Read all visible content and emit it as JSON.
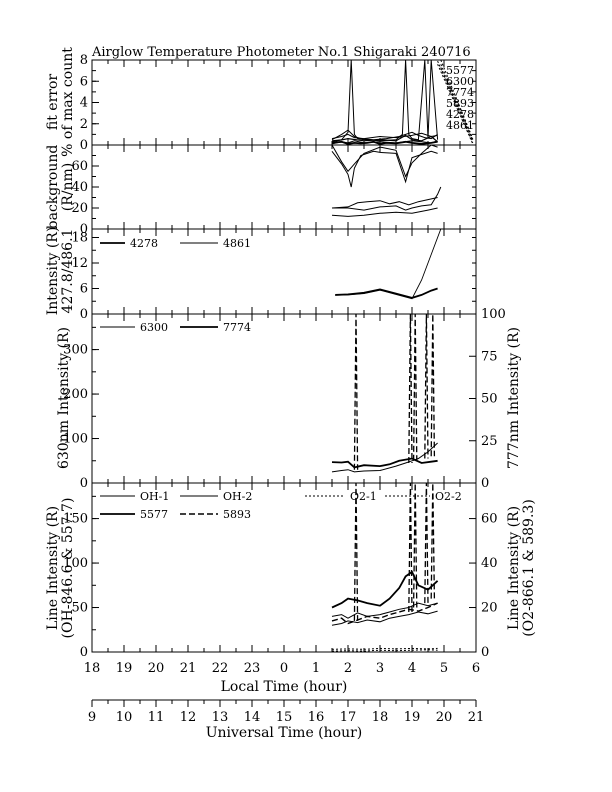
{
  "chart_data": {
    "type": "line",
    "title": "Airglow Temperature Photometer No.1  Shigaraki  240716",
    "x_axis_local": {
      "label": "Local Time (hour)",
      "range": [
        18,
        30
      ],
      "tick_values": [
        18,
        19,
        20,
        21,
        22,
        23,
        24,
        25,
        26,
        27,
        28,
        29,
        30
      ],
      "tick_labels": [
        "18",
        "19",
        "20",
        "21",
        "22",
        "23",
        "0",
        "1",
        "2",
        "3",
        "4",
        "5",
        "6"
      ]
    },
    "x_axis_universal": {
      "label": "Universal Time (hour)",
      "range": [
        9,
        21
      ],
      "tick_values": [
        9,
        10,
        11,
        12,
        13,
        14,
        15,
        16,
        17,
        18,
        19,
        20,
        21
      ],
      "tick_labels": [
        "9",
        "10",
        "11",
        "12",
        "13",
        "14",
        "15",
        "16",
        "17",
        "18",
        "19",
        "20",
        "21"
      ]
    },
    "panels": [
      {
        "id": "fit-error",
        "ylabel": [
          "fit error",
          "% of max count"
        ],
        "ylim": [
          0,
          8
        ],
        "yticks": [
          0,
          2,
          4,
          6,
          8
        ],
        "legend": [
          "5577",
          "6300",
          "7774",
          "5893",
          "4278",
          "4861"
        ],
        "series": [
          {
            "name": "5577",
            "dash": "",
            "width": 1.2,
            "x": [
              25.5,
              26.0,
              26.5,
              27.0,
              27.5,
              27.8,
              28.0,
              28.3,
              28.6,
              28.8
            ],
            "y": [
              0.3,
              0.6,
              0.4,
              0.5,
              0.4,
              0.9,
              0.5,
              0.4,
              0.8,
              0.3
            ]
          },
          {
            "name": "6300",
            "dash": "",
            "width": 1.0,
            "x": [
              25.5,
              25.8,
              26.0,
              26.2,
              26.4,
              26.8,
              27.2,
              27.6,
              28.0,
              28.2,
              28.4,
              28.6,
              28.8
            ],
            "y": [
              0.5,
              1.0,
              1.4,
              0.8,
              0.6,
              0.5,
              0.6,
              0.8,
              1.2,
              0.9,
              0.7,
              0.6,
              1.0
            ]
          },
          {
            "name": "7774",
            "dash": "",
            "width": 1.8,
            "x": [
              25.5,
              25.8,
              26.0,
              26.2,
              26.4,
              26.6,
              26.8,
              27.0,
              27.2,
              27.5,
              27.8,
              28.0,
              28.3,
              28.6,
              28.8
            ],
            "y": [
              0.2,
              0.3,
              0.1,
              0.2,
              0.15,
              0.2,
              0.3,
              0.1,
              0.2,
              0.15,
              0.3,
              0.2,
              0.1,
              0.2,
              0.3
            ]
          },
          {
            "name": "5893",
            "dash": "",
            "width": 1.0,
            "x": [
              25.5,
              25.8,
              26.0,
              26.1,
              26.2,
              26.3,
              26.5,
              27.0,
              27.5,
              27.7,
              27.8,
              27.9,
              28.0,
              28.2,
              28.4,
              28.5,
              28.6,
              28.8
            ],
            "y": [
              0.4,
              0.5,
              1.2,
              8.0,
              1.0,
              0.6,
              0.5,
              0.4,
              0.5,
              1.0,
              8.0,
              1.0,
              0.6,
              0.5,
              8.0,
              0.6,
              8.0,
              0.5
            ]
          },
          {
            "name": "4278",
            "dash": "",
            "width": 1.0,
            "x": [
              25.5,
              25.8,
              26.0,
              26.2,
              26.5,
              27.0,
              27.5,
              28.0,
              28.3,
              28.6,
              28.8
            ],
            "y": [
              0.1,
              0.3,
              0.2,
              0.4,
              0.2,
              0.3,
              0.2,
              0.4,
              0.3,
              0.2,
              0.4
            ]
          },
          {
            "name": "4861",
            "dash": "",
            "width": 1.0,
            "x": [
              25.5,
              25.8,
              26.0,
              26.2,
              26.5,
              27.0,
              27.5,
              28.0,
              28.3,
              28.6,
              28.8
            ],
            "y": [
              0.6,
              0.8,
              1.0,
              0.7,
              0.6,
              0.8,
              0.7,
              0.9,
              1.1,
              0.8,
              0.9
            ]
          }
        ],
        "spike_lines": [
          {
            "x0": 28.9,
            "x1": 29.9,
            "y0": 8.0,
            "y1": 0.6
          },
          {
            "x0": 28.9,
            "x1": 29.9,
            "y0": 7.6,
            "y1": 0.5
          },
          {
            "x0": 28.9,
            "x1": 29.9,
            "y0": 7.3,
            "y1": 0.4
          },
          {
            "x0": 28.8,
            "x1": 29.9,
            "y0": 7.9,
            "y1": 0.2
          },
          {
            "x0": 28.8,
            "x1": 29.9,
            "y0": 7.6,
            "y1": 0.1
          }
        ]
      },
      {
        "id": "background",
        "ylabel": [
          "background",
          "(R/nm)"
        ],
        "ylim": [
          0,
          80
        ],
        "yticks": [
          0,
          20,
          40,
          60
        ],
        "series": [
          {
            "name": "",
            "dash": "",
            "width": 1.0,
            "x": [
              25.5,
              25.8,
              26.0,
              26.1,
              26.2,
              26.4,
              26.6,
              26.8,
              27.0,
              27.5,
              27.8,
              28.0,
              28.2,
              28.4,
              28.6,
              28.8
            ],
            "y": [
              74,
              62,
              52,
              40,
              58,
              70,
              72,
              74,
              73,
              72,
              45,
              68,
              70,
              72,
              74,
              72
            ]
          },
          {
            "name": "",
            "dash": "",
            "width": 1.0,
            "x": [
              25.5,
              25.8,
              26.0,
              26.2,
              26.5,
              27.0,
              27.5,
              27.8,
              28.0,
              28.3,
              28.6,
              28.8
            ],
            "y": [
              80,
              64,
              55,
              62,
              72,
              78,
              75,
              50,
              63,
              72,
              80,
              78
            ]
          },
          {
            "name": "",
            "dash": "",
            "width": 1.0,
            "x": [
              25.5,
              26.0,
              26.3,
              26.6,
              27.0,
              27.3,
              27.6,
              27.9,
              28.2,
              28.5,
              28.8
            ],
            "y": [
              20,
              21,
              25,
              26,
              27,
              24,
              26,
              23,
              26,
              28,
              30
            ]
          },
          {
            "name": "",
            "dash": "",
            "width": 1.0,
            "x": [
              25.5,
              26.0,
              26.5,
              27.0,
              27.5,
              27.8,
              28.0,
              28.3,
              28.6,
              28.8,
              28.9
            ],
            "y": [
              20,
              20,
              18,
              21,
              22,
              18,
              20,
              22,
              23,
              33,
              40
            ]
          },
          {
            "name": "",
            "dash": "",
            "width": 1.0,
            "x": [
              25.5,
              26.0,
              26.5,
              27.0,
              27.5,
              28.0,
              28.5,
              28.8
            ],
            "y": [
              13,
              12,
              13,
              15,
              16,
              15,
              18,
              20
            ]
          }
        ]
      },
      {
        "id": "blue-lines",
        "ylabel": [
          "Intensity (R)",
          "427.8/486.1"
        ],
        "ylim": [
          0,
          20
        ],
        "yticks": [
          0,
          6,
          12,
          18
        ],
        "legend": [
          "4278",
          "4861"
        ],
        "series": [
          {
            "name": "4278",
            "dash": "",
            "width": 1.8,
            "x": [
              25.6,
              26.0,
              26.5,
              27.0,
              27.5,
              28.0,
              28.3,
              28.6,
              28.8
            ],
            "y": [
              4.5,
              4.6,
              5.0,
              5.8,
              4.8,
              3.8,
              4.5,
              5.5,
              6.0
            ]
          },
          {
            "name": "4861",
            "dash": "",
            "width": 0.9,
            "x": [
              25.6,
              26.0,
              26.5,
              27.0,
              27.5,
              28.0,
              28.3,
              28.6,
              28.9
            ],
            "y": [
              4.4,
              4.5,
              4.8,
              5.6,
              4.6,
              3.6,
              8.0,
              14.0,
              20.0
            ]
          }
        ]
      },
      {
        "id": "red-lines",
        "ylabel": [
          "630nm Intensity (R)"
        ],
        "ylabel_right": [
          "777nm Intensity (R)"
        ],
        "ylim": [
          0,
          380
        ],
        "yticks": [
          0,
          100,
          200,
          300
        ],
        "ylim_right": [
          0,
          100
        ],
        "yticks_right": [
          0,
          25,
          50,
          75,
          100
        ],
        "legend": [
          "6300",
          "7774"
        ],
        "series": [
          {
            "name": "6300",
            "dash": "",
            "width": 1.0,
            "x": [
              25.5,
              25.8,
              26.0,
              26.2,
              26.5,
              27.0,
              27.5,
              27.8,
              28.0,
              28.2,
              28.5,
              28.8
            ],
            "y": [
              25,
              28,
              30,
              25,
              27,
              28,
              38,
              45,
              50,
              55,
              70,
              90
            ]
          },
          {
            "name": "7774",
            "dash": "",
            "width": 1.8,
            "x": [
              25.5,
              25.8,
              26.0,
              26.2,
              26.5,
              27.0,
              27.3,
              27.6,
              28.0,
              28.3,
              28.6,
              28.8
            ],
            "y": [
              47,
              46,
              48,
              35,
              40,
              38,
              42,
              50,
              55,
              45,
              48,
              50
            ]
          }
        ],
        "spikes": [
          {
            "x": [
              26.2,
              26.25,
              26.3
            ],
            "y": [
              30,
              380,
              30
            ],
            "dash": "6,3",
            "width": 1.3
          },
          {
            "x": [
              27.9,
              27.95,
              28.0
            ],
            "y": [
              45,
              380,
              45
            ],
            "dash": "6,3",
            "width": 1.3
          },
          {
            "x": [
              28.05,
              28.1,
              28.15
            ],
            "y": [
              50,
              380,
              50
            ],
            "dash": "6,3",
            "width": 1.3
          },
          {
            "x": [
              28.4,
              28.45,
              28.5
            ],
            "y": [
              55,
              380,
              55
            ],
            "dash": "6,3",
            "width": 1.3
          },
          {
            "x": [
              28.6,
              28.65,
              28.7
            ],
            "y": [
              60,
              380,
              60
            ],
            "dash": "6,3",
            "width": 1.3
          }
        ]
      },
      {
        "id": "oh-lines",
        "ylabel": [
          "Line Intensity (R)",
          "(OH-846.6 & 557.7)"
        ],
        "ylabel_right": [
          "Line Intensity (R)",
          "(O2-866.1 & 589.3)"
        ],
        "ylim": [
          0,
          190
        ],
        "yticks": [
          0,
          50,
          100,
          150
        ],
        "ylim_right": [
          0,
          76
        ],
        "yticks_right": [
          0,
          20,
          40,
          60
        ],
        "legend": [
          "OH-1",
          "OH-2",
          "5577",
          "5893",
          "O2-1",
          "O2-2"
        ],
        "series": [
          {
            "name": "OH-1",
            "dash": "",
            "width": 1.0,
            "x": [
              25.5,
              25.8,
              26.0,
              26.3,
              26.6,
              27.0,
              27.3,
              27.6,
              27.9,
              28.2,
              28.5,
              28.8
            ],
            "y": [
              40,
              42,
              38,
              44,
              40,
              42,
              45,
              48,
              50,
              55,
              52,
              55
            ]
          },
          {
            "name": "OH-2",
            "dash": "",
            "width": 1.0,
            "x": [
              25.5,
              25.8,
              26.0,
              26.3,
              26.6,
              27.0,
              27.3,
              27.6,
              27.9,
              28.2,
              28.5,
              28.8
            ],
            "y": [
              30,
              32,
              35,
              33,
              36,
              34,
              38,
              40,
              42,
              45,
              43,
              46
            ]
          },
          {
            "name": "5577",
            "dash": "",
            "width": 1.8,
            "x": [
              25.5,
              25.8,
              26.0,
              26.3,
              26.6,
              27.0,
              27.3,
              27.6,
              27.8,
              28.0,
              28.2,
              28.5,
              28.8
            ],
            "y": [
              50,
              55,
              60,
              58,
              55,
              52,
              60,
              72,
              85,
              90,
              75,
              70,
              80
            ]
          },
          {
            "name": "5893",
            "dash": "6,3",
            "width": 1.4,
            "x": [
              25.5,
              25.8,
              26.0,
              26.3,
              26.6,
              27.0,
              27.3,
              27.6,
              27.9,
              28.2,
              28.5,
              28.8
            ],
            "y": [
              35,
              38,
              32,
              36,
              40,
              38,
              42,
              45,
              48,
              46,
              50,
              55
            ]
          },
          {
            "name": "O2-1",
            "dash": "2,2",
            "width": 1.0,
            "x": [
              25.5,
              26.0,
              26.5,
              27.0,
              27.5,
              28.0,
              28.5,
              28.8
            ],
            "y": [
              1,
              1.5,
              1,
              2,
              1.5,
              2,
              2.5,
              2
            ]
          },
          {
            "name": "O2-2",
            "dash": "2,2",
            "width": 1.0,
            "x": [
              25.5,
              26.0,
              26.5,
              27.0,
              27.5,
              28.0,
              28.5,
              28.8
            ],
            "y": [
              3,
              3.5,
              3,
              4,
              3.5,
              4,
              3.5,
              4
            ]
          }
        ],
        "spikes": [
          {
            "x": [
              26.2,
              26.25,
              26.3
            ],
            "y": [
              35,
              190,
              35
            ],
            "dash": "6,3",
            "width": 1.3
          },
          {
            "x": [
              27.9,
              27.95,
              28.0
            ],
            "y": [
              45,
              190,
              45
            ],
            "dash": "6,3",
            "width": 1.3
          },
          {
            "x": [
              28.05,
              28.1,
              28.15
            ],
            "y": [
              50,
              190,
              50
            ],
            "dash": "6,3",
            "width": 1.3
          },
          {
            "x": [
              28.4,
              28.45,
              28.5
            ],
            "y": [
              55,
              190,
              55
            ],
            "dash": "6,3",
            "width": 1.3
          },
          {
            "x": [
              28.6,
              28.65,
              28.7
            ],
            "y": [
              60,
              190,
              60
            ],
            "dash": "6,3",
            "width": 1.3
          }
        ]
      }
    ]
  }
}
